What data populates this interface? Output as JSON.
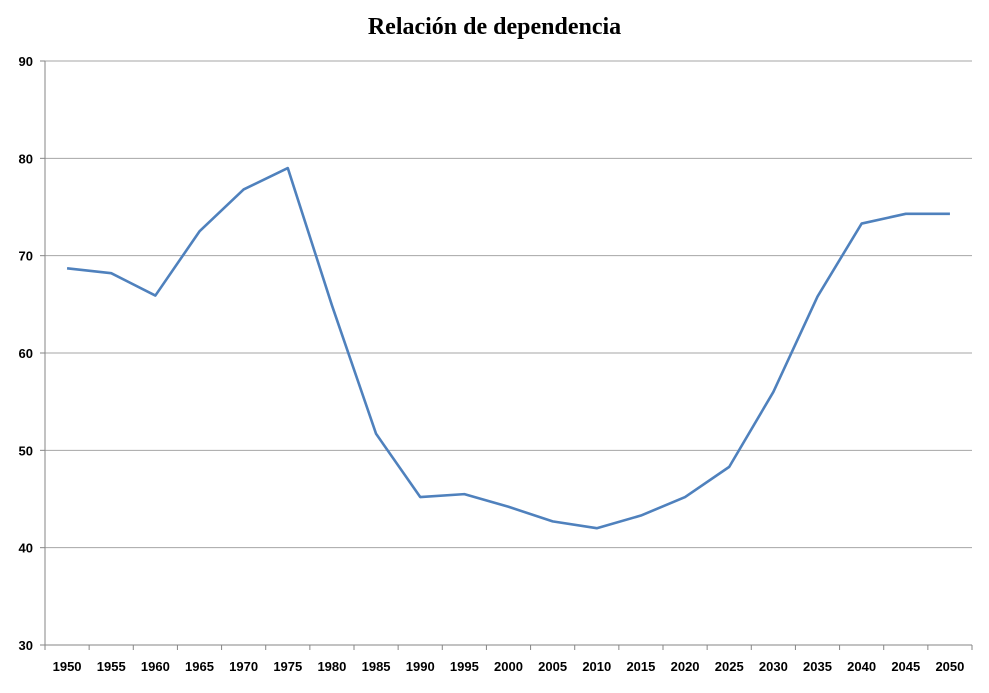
{
  "chart_data": {
    "type": "line",
    "title": "Relación de dependencia",
    "xlabel": "",
    "ylabel": "",
    "categories": [
      "1950",
      "1955",
      "1960",
      "1965",
      "1970",
      "1975",
      "1980",
      "1985",
      "1990",
      "1995",
      "2000",
      "2005",
      "2010",
      "2015",
      "2020",
      "2025",
      "2030",
      "2035",
      "2040",
      "2045",
      "2050"
    ],
    "series": [
      {
        "values": [
          68.7,
          68.2,
          65.9,
          72.5,
          76.8,
          79.0,
          64.9,
          51.7,
          45.2,
          45.5,
          44.2,
          42.7,
          42.0,
          43.3,
          45.2,
          48.3,
          56.0,
          65.8,
          73.3,
          74.3,
          74.3
        ]
      }
    ],
    "ylim": [
      30,
      90
    ],
    "yticks": [
      30,
      40,
      50,
      60,
      70,
      80,
      90
    ],
    "grid": true,
    "legend": "none",
    "colors": {
      "line": "#4F81BD",
      "grid": "#A6A6A6"
    }
  }
}
